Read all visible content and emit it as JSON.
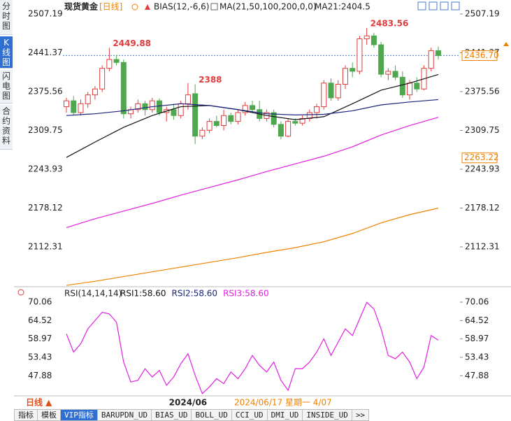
{
  "chart_data": {
    "type": "candlestick",
    "title": "现货黄金",
    "period": "[日线]",
    "indicator": "BIAS(12,-6,6)",
    "ma_label": "MA(21,50,100,200,0,0)",
    "ma21_label": "MA21:2404.5",
    "up_color": "#e03c3c",
    "down_color": "#4fa84f",
    "ylim": [
      2047.1,
      2521.4
    ],
    "yticks": [
      2507.19,
      2441.37,
      2375.56,
      2309.75,
      2243.93,
      2178.12,
      2112.31
    ],
    "last_price": {
      "value": 2436.7,
      "label": "2436.70"
    },
    "ref_price": 2263.22,
    "categories": [
      null,
      null,
      null,
      null,
      null,
      null,
      null,
      null,
      null,
      null,
      null,
      null,
      null,
      null,
      null,
      null,
      null,
      "2024/06",
      null,
      null,
      null,
      null,
      null,
      null,
      null,
      null,
      null,
      null,
      null,
      null,
      null,
      null,
      null,
      null,
      null,
      null,
      null,
      null,
      null,
      null,
      null,
      null,
      null,
      null,
      null,
      null,
      null,
      null,
      null,
      null,
      null,
      null,
      null
    ],
    "candles": {
      "open": [
        2350,
        2360,
        2340,
        2355,
        2370,
        2380,
        2415,
        2430,
        2425,
        2338,
        2345,
        2355,
        2345,
        2360,
        2340,
        2345,
        2335,
        2355,
        2372,
        2300,
        2310,
        2325,
        2318,
        2335,
        2325,
        2340,
        2352,
        2345,
        2330,
        2340,
        2320,
        2300,
        2325,
        2322,
        2330,
        2340,
        2350,
        2390,
        2365,
        2388,
        2415,
        2410,
        2465,
        2470,
        2455,
        2405,
        2410,
        2400,
        2370,
        2390,
        2380,
        2415,
        2445
      ],
      "high": [
        2365,
        2368,
        2362,
        2375,
        2385,
        2420,
        2449.88,
        2438,
        2430,
        2350,
        2362,
        2360,
        2365,
        2364,
        2350,
        2355,
        2360,
        2390,
        2388,
        2315,
        2330,
        2335,
        2345,
        2340,
        2345,
        2358,
        2360,
        2360,
        2345,
        2345,
        2325,
        2330,
        2330,
        2335,
        2345,
        2355,
        2395,
        2398,
        2395,
        2420,
        2425,
        2470,
        2483.56,
        2475,
        2460,
        2415,
        2420,
        2410,
        2395,
        2400,
        2420,
        2450,
        2452
      ],
      "low": [
        2340,
        2335,
        2335,
        2348,
        2362,
        2375,
        2410,
        2420,
        2330,
        2330,
        2340,
        2335,
        2340,
        2335,
        2325,
        2328,
        2330,
        2345,
        2286.68,
        2295,
        2305,
        2315,
        2310,
        2320,
        2320,
        2335,
        2340,
        2325,
        2325,
        2315,
        2295,
        2298,
        2318,
        2318,
        2325,
        2330,
        2345,
        2360,
        2360,
        2380,
        2400,
        2405,
        2455,
        2450,
        2400,
        2395,
        2395,
        2365,
        2362,
        2375,
        2378,
        2410,
        2430
      ],
      "close": [
        2360,
        2340,
        2355,
        2370,
        2380,
        2415,
        2430,
        2425,
        2338,
        2345,
        2355,
        2345,
        2360,
        2340,
        2345,
        2335,
        2355,
        2370,
        2300,
        2310,
        2325,
        2318,
        2335,
        2325,
        2340,
        2352,
        2345,
        2330,
        2340,
        2320,
        2300,
        2325,
        2322,
        2330,
        2340,
        2350,
        2390,
        2365,
        2388,
        2415,
        2410,
        2465,
        2470,
        2455,
        2405,
        2410,
        2400,
        2370,
        2390,
        2380,
        2415,
        2445,
        2436.7
      ]
    },
    "annotations": [
      6,
      42,
      18
    ],
    "ma": [
      {
        "color": "#111111",
        "x": [
          0,
          4,
          8,
          12,
          16,
          20,
          24,
          28,
          32,
          36,
          40,
          44,
          48,
          52
        ],
        "values": [
          2264,
          2290,
          2315,
          2335,
          2350,
          2352,
          2345,
          2335,
          2328,
          2333,
          2355,
          2378,
          2390,
          2404.5
        ]
      },
      {
        "color": "#1a237e",
        "x": [
          0,
          4,
          8,
          12,
          16,
          20,
          24,
          28,
          32,
          36,
          40,
          44,
          48,
          52
        ],
        "values": [
          2335,
          2338,
          2343,
          2350,
          2355,
          2352,
          2345,
          2338,
          2336,
          2337,
          2343,
          2353,
          2358,
          2362
        ]
      },
      {
        "color": "#e020e0",
        "x": [
          0,
          4,
          8,
          12,
          16,
          20,
          24,
          28,
          32,
          36,
          40,
          44,
          48,
          52
        ],
        "values": [
          2145,
          2160,
          2173,
          2186,
          2200,
          2213,
          2226,
          2240,
          2253,
          2266,
          2282,
          2302,
          2318,
          2332
        ]
      },
      {
        "color": "#f08000",
        "x": [
          0,
          4,
          8,
          12,
          16,
          20,
          24,
          28,
          32,
          36,
          40,
          44,
          48,
          52
        ],
        "values": [
          2047,
          2054,
          2062,
          2070,
          2078,
          2086,
          2094,
          2103,
          2111,
          2121,
          2135,
          2153,
          2167,
          2178
        ]
      }
    ],
    "rsi": {
      "label": "RSI(14,14,14)",
      "series_labels": [
        "RSI1:58.60",
        "RSI2:58.60",
        "RSI3:58.60"
      ],
      "label_colors": [
        "#111111",
        "#1a237e",
        "#e020e0"
      ],
      "color": "#e020e0",
      "ylim": [
        42.04,
        72.59
      ],
      "yticks": [
        70.06,
        64.52,
        58.97,
        53.43,
        47.88
      ],
      "values": [
        60.5,
        55,
        57.5,
        62,
        64.5,
        67,
        66.5,
        64,
        52,
        46,
        46.5,
        50,
        47.5,
        49.5,
        45,
        47.5,
        51.5,
        54.5,
        48,
        42.5,
        44.5,
        47,
        45.5,
        49,
        47,
        50,
        54,
        51,
        49,
        52,
        46.5,
        43.5,
        50,
        50,
        52,
        55,
        59,
        54,
        58,
        62,
        60,
        65,
        70,
        68,
        62,
        54,
        53,
        55,
        52,
        47,
        50.5,
        60,
        58.6
      ]
    },
    "period_button": "日线 ▲",
    "status": "2024/06/17 星期一 4/07",
    "side_tabs": [
      "分时图",
      "K线图",
      "闪电图",
      "合约资料"
    ],
    "bottom_tabs": [
      "指标",
      "模板",
      "VIP指标",
      "BARUPDN_UD",
      "BIAS_UD",
      "BOLL_UD",
      "CCI_UD",
      "DMI_UD",
      "INSIDE_UD",
      ">>"
    ]
  }
}
